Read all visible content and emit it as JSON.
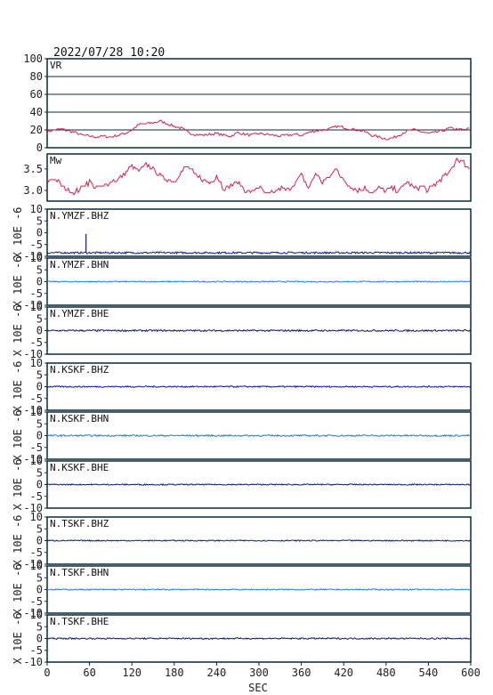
{
  "title": "2022/07/28 10:20",
  "xlabel": "SEC",
  "x_ticks": [
    0,
    60,
    120,
    180,
    240,
    300,
    360,
    420,
    480,
    540,
    600
  ],
  "colors": {
    "vr": "#d6204e",
    "mw": "#d6204e",
    "frame": "#0a2a3a",
    "grid": "#0a2a3a",
    "bhz": "#0a1a9a",
    "bhn": "#2a7adf",
    "bhe": "#0a1670"
  },
  "chart_data": [
    {
      "type": "line",
      "panel": "vr",
      "label": "VR",
      "xlim": [
        0,
        600
      ],
      "ylim": [
        0,
        100
      ],
      "yticks": [
        0,
        20,
        40,
        60,
        80,
        100
      ],
      "grid": true,
      "series": [
        {
          "x": [
            0,
            10,
            20,
            30,
            40,
            50,
            60,
            70,
            80,
            90,
            100,
            110,
            120,
            130,
            140,
            150,
            160,
            170,
            180,
            190,
            200,
            210,
            220,
            230,
            240,
            250,
            260,
            270,
            280,
            290,
            300,
            310,
            320,
            330,
            340,
            350,
            360,
            370,
            380,
            390,
            400,
            410,
            420,
            430,
            440,
            450,
            460,
            470,
            480,
            490,
            500,
            510,
            520,
            530,
            540,
            550,
            560,
            570,
            580,
            590,
            600
          ],
          "y": [
            18,
            20,
            21,
            19,
            17,
            14,
            13,
            12,
            13,
            12,
            14,
            16,
            20,
            26,
            27,
            28,
            30,
            27,
            24,
            22,
            17,
            15,
            14,
            15,
            16,
            14,
            13,
            17,
            15,
            14,
            16,
            15,
            14,
            13,
            14,
            15,
            14,
            17,
            19,
            20,
            21,
            24,
            23,
            21,
            20,
            18,
            14,
            12,
            10,
            11,
            15,
            19,
            20,
            18,
            16,
            17,
            19,
            22,
            21,
            20,
            22
          ]
        }
      ]
    },
    {
      "type": "line",
      "panel": "mw",
      "label": "Mw",
      "xlim": [
        0,
        600
      ],
      "ylim": [
        2.75,
        3.85
      ],
      "yticks": [
        3.0,
        3.5
      ],
      "ytick_labels": [
        "3.0",
        "3.5"
      ],
      "grid": false,
      "series": [
        {
          "x": [
            0,
            10,
            20,
            30,
            40,
            50,
            60,
            70,
            80,
            90,
            100,
            110,
            120,
            130,
            140,
            150,
            160,
            170,
            180,
            190,
            200,
            210,
            220,
            230,
            240,
            250,
            260,
            270,
            280,
            290,
            300,
            310,
            320,
            330,
            340,
            350,
            360,
            370,
            380,
            390,
            400,
            410,
            420,
            430,
            440,
            450,
            460,
            470,
            480,
            490,
            500,
            510,
            520,
            530,
            540,
            550,
            560,
            570,
            580,
            590,
            600
          ],
          "y": [
            3.2,
            3.3,
            3.1,
            3.0,
            2.95,
            3.1,
            3.2,
            3.05,
            3.1,
            3.2,
            3.25,
            3.4,
            3.55,
            3.45,
            3.6,
            3.5,
            3.35,
            3.25,
            3.2,
            3.45,
            3.55,
            3.35,
            3.25,
            3.15,
            3.35,
            3.05,
            3.1,
            3.2,
            3.0,
            2.95,
            3.1,
            2.9,
            2.95,
            3.05,
            3.0,
            3.15,
            3.35,
            3.05,
            3.4,
            3.2,
            3.3,
            3.55,
            3.2,
            3.1,
            3.0,
            3.05,
            2.95,
            3.05,
            3.0,
            3.05,
            3.0,
            3.2,
            3.05,
            3.1,
            3.0,
            3.15,
            3.3,
            3.4,
            3.75,
            3.65,
            3.5
          ]
        }
      ]
    },
    {
      "type": "line",
      "panel": "trace",
      "label": "N.YMZF.BHZ",
      "channel": "bhz",
      "ylim": [
        -10,
        10
      ],
      "yticks": [
        -10,
        -5,
        0,
        5,
        10
      ],
      "unit_label": "X 10E -6",
      "baseline": -8.5,
      "amplitude": 0.4,
      "spikes": [
        {
          "x": 55,
          "y": -0.5
        }
      ]
    },
    {
      "type": "line",
      "panel": "trace",
      "label": "N.YMZF.BHN",
      "channel": "bhn",
      "ylim": [
        -10,
        10
      ],
      "yticks": [
        -10,
        -5,
        0,
        5,
        10
      ],
      "unit_label": "X 10E -6",
      "baseline": 0,
      "amplitude": 0.25,
      "spikes": []
    },
    {
      "type": "line",
      "panel": "trace",
      "label": "N.YMZF.BHE",
      "channel": "bhe",
      "ylim": [
        -10,
        10
      ],
      "yticks": [
        -10,
        -5,
        0,
        5,
        10
      ],
      "unit_label": "X 10E -6",
      "baseline": 0,
      "amplitude": 0.35,
      "spikes": []
    },
    {
      "type": "line",
      "panel": "trace",
      "label": "N.KSKF.BHZ",
      "channel": "bhz",
      "ylim": [
        -10,
        10
      ],
      "yticks": [
        -10,
        -5,
        0,
        5,
        10
      ],
      "unit_label": "X 10E -6",
      "baseline": 0,
      "amplitude": 0.3,
      "spikes": []
    },
    {
      "type": "line",
      "panel": "trace",
      "label": "N.KSKF.BHN",
      "channel": "bhn",
      "ylim": [
        -10,
        10
      ],
      "yticks": [
        -10,
        -5,
        0,
        5,
        10
      ],
      "unit_label": "X 10E -6",
      "baseline": 0,
      "amplitude": 0.35,
      "spikes": []
    },
    {
      "type": "line",
      "panel": "trace",
      "label": "N.KSKF.BHE",
      "channel": "bhe",
      "ylim": [
        -10,
        10
      ],
      "yticks": [
        -10,
        -5,
        0,
        5,
        10
      ],
      "unit_label": "X 10E -6",
      "baseline": 0,
      "amplitude": 0.25,
      "spikes": []
    },
    {
      "type": "line",
      "panel": "trace",
      "label": "N.TSKF.BHZ",
      "channel": "bhz",
      "ylim": [
        -10,
        10
      ],
      "yticks": [
        -10,
        -5,
        0,
        5,
        10
      ],
      "unit_label": "X 10E -6",
      "baseline": 0,
      "amplitude": 0.25,
      "spikes": []
    },
    {
      "type": "line",
      "panel": "trace",
      "label": "N.TSKF.BHN",
      "channel": "bhn",
      "ylim": [
        -10,
        10
      ],
      "yticks": [
        -10,
        -5,
        0,
        5,
        10
      ],
      "unit_label": "X 10E -6",
      "baseline": 0,
      "amplitude": 0.25,
      "spikes": []
    },
    {
      "type": "line",
      "panel": "trace",
      "label": "N.TSKF.BHE",
      "channel": "bhe",
      "ylim": [
        -10,
        10
      ],
      "yticks": [
        -10,
        -5,
        0,
        5,
        10
      ],
      "unit_label": "X 10E -6",
      "baseline": 0,
      "amplitude": 0.3,
      "spikes": []
    }
  ]
}
